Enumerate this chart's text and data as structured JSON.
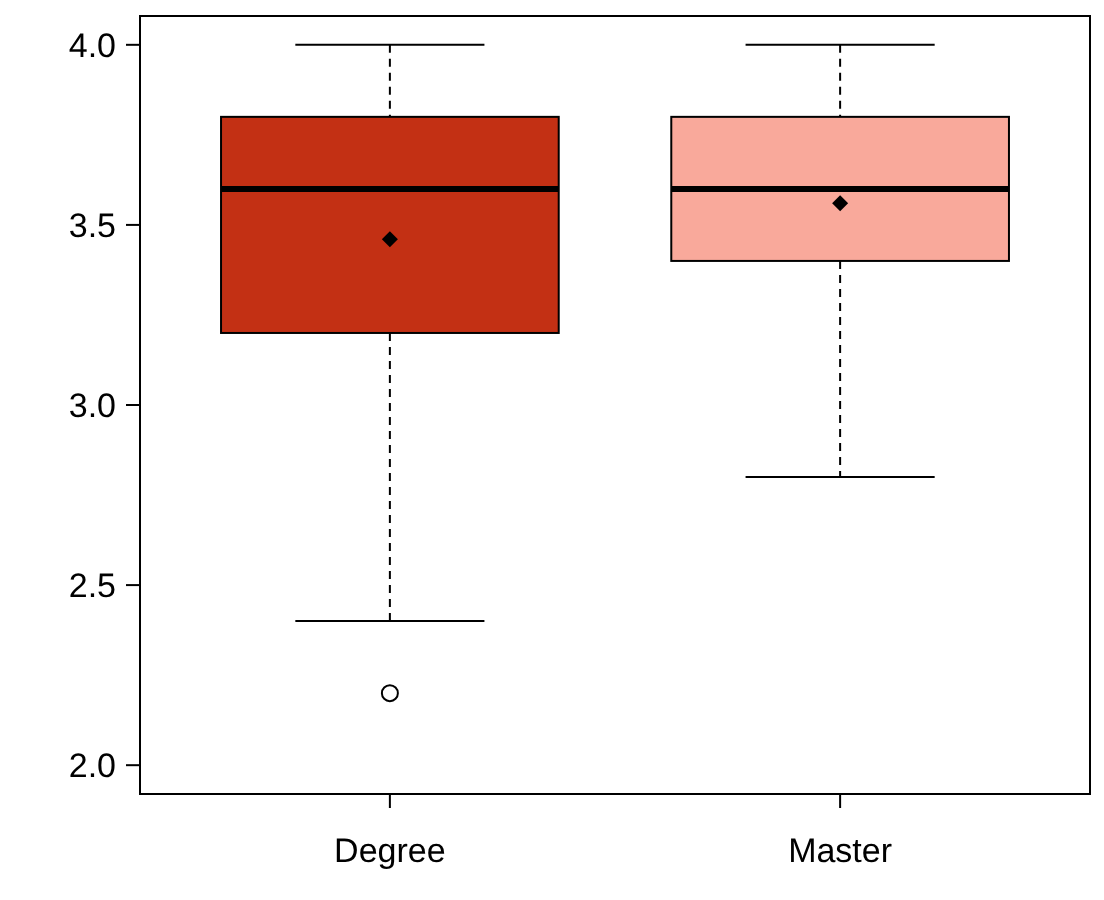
{
  "chart_data": {
    "type": "box",
    "categories": [
      "Degree",
      "Master"
    ],
    "colors": [
      "#c33014",
      "#f9a99b"
    ],
    "boxes": [
      {
        "low": 2.4,
        "q1": 3.2,
        "median": 3.6,
        "q3": 3.8,
        "high": 4.0,
        "mean": 3.46,
        "outliers": [
          2.2
        ]
      },
      {
        "low": 2.8,
        "q1": 3.4,
        "median": 3.6,
        "q3": 3.8,
        "high": 4.0,
        "mean": 3.56
      }
    ],
    "ylim": [
      1.92,
      4.08
    ],
    "yticks": [
      {
        "value": 2,
        "label": "2.0"
      },
      {
        "value": 2.5,
        "label": "2.5"
      },
      {
        "value": 3,
        "label": "3.0"
      },
      {
        "value": 3.5,
        "label": "3.5"
      },
      {
        "value": 4,
        "label": "4.0"
      }
    ],
    "grid": false
  }
}
